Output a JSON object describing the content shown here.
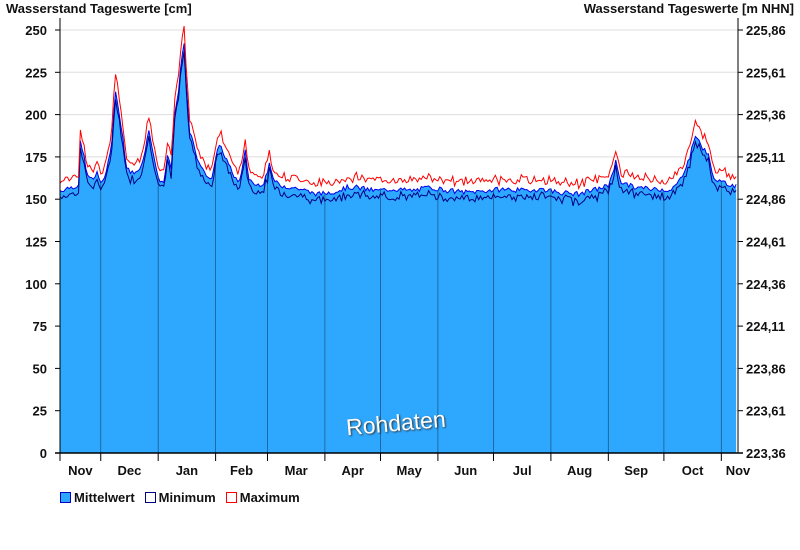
{
  "chart_data": {
    "type": "area",
    "title_left": "Wasserstand Tageswerte [cm]",
    "title_right": "Wasserstand Tageswerte [m NHN]",
    "ylim": [
      0,
      250
    ],
    "y_ticks": [
      0,
      25,
      50,
      75,
      100,
      125,
      150,
      175,
      200,
      225,
      250
    ],
    "y2_ticks": [
      "223,36",
      "223,61",
      "223,86",
      "224,11",
      "224,36",
      "224,61",
      "224,86",
      "225,11",
      "225,36",
      "225,61",
      "225,86"
    ],
    "x_range_days": [
      0,
      366
    ],
    "month_ticks": [
      {
        "label": "Nov",
        "day": 0
      },
      {
        "label": "Dec",
        "day": 22
      },
      {
        "label": "Jan",
        "day": 53
      },
      {
        "label": "Feb",
        "day": 84
      },
      {
        "label": "Mar",
        "day": 112
      },
      {
        "label": "Apr",
        "day": 143
      },
      {
        "label": "May",
        "day": 173
      },
      {
        "label": "Jun",
        "day": 204
      },
      {
        "label": "Jul",
        "day": 234
      },
      {
        "label": "Aug",
        "day": 265
      },
      {
        "label": "Sep",
        "day": 296
      },
      {
        "label": "Oct",
        "day": 326
      },
      {
        "label": "Nov",
        "day": 357
      }
    ],
    "mean_keypoints": [
      [
        0,
        155
      ],
      [
        5,
        157
      ],
      [
        10,
        158
      ],
      [
        11,
        183
      ],
      [
        13,
        175
      ],
      [
        15,
        163
      ],
      [
        18,
        162
      ],
      [
        20,
        165
      ],
      [
        22,
        160
      ],
      [
        25,
        165
      ],
      [
        28,
        185
      ],
      [
        30,
        215
      ],
      [
        32,
        200
      ],
      [
        34,
        185
      ],
      [
        36,
        168
      ],
      [
        40,
        165
      ],
      [
        44,
        170
      ],
      [
        48,
        190
      ],
      [
        50,
        180
      ],
      [
        53,
        162
      ],
      [
        56,
        160
      ],
      [
        58,
        175
      ],
      [
        60,
        168
      ],
      [
        62,
        200
      ],
      [
        64,
        215
      ],
      [
        66,
        235
      ],
      [
        67,
        242
      ],
      [
        68,
        220
      ],
      [
        70,
        190
      ],
      [
        74,
        175
      ],
      [
        78,
        165
      ],
      [
        82,
        163
      ],
      [
        86,
        183
      ],
      [
        88,
        178
      ],
      [
        92,
        168
      ],
      [
        96,
        160
      ],
      [
        98,
        165
      ],
      [
        100,
        178
      ],
      [
        102,
        162
      ],
      [
        106,
        158
      ],
      [
        110,
        160
      ],
      [
        113,
        170
      ],
      [
        116,
        160
      ],
      [
        120,
        158
      ],
      [
        125,
        157
      ],
      [
        130,
        156
      ],
      [
        135,
        154
      ],
      [
        140,
        153
      ],
      [
        145,
        154
      ],
      [
        150,
        155
      ],
      [
        155,
        157
      ],
      [
        160,
        157
      ],
      [
        165,
        156
      ],
      [
        170,
        155
      ],
      [
        180,
        156
      ],
      [
        190,
        155
      ],
      [
        200,
        157
      ],
      [
        210,
        155
      ],
      [
        220,
        154
      ],
      [
        230,
        155
      ],
      [
        240,
        156
      ],
      [
        250,
        155
      ],
      [
        260,
        156
      ],
      [
        270,
        154
      ],
      [
        280,
        153
      ],
      [
        290,
        156
      ],
      [
        296,
        158
      ],
      [
        300,
        172
      ],
      [
        303,
        160
      ],
      [
        310,
        157
      ],
      [
        320,
        156
      ],
      [
        325,
        156
      ],
      [
        330,
        155
      ],
      [
        335,
        162
      ],
      [
        340,
        175
      ],
      [
        343,
        188
      ],
      [
        346,
        182
      ],
      [
        350,
        176
      ],
      [
        352,
        165
      ],
      [
        356,
        160
      ],
      [
        365,
        158
      ]
    ],
    "min_offset": -4,
    "max_offset": 6,
    "series": [
      {
        "name": "Mittelwert",
        "color": "#2ea8ff"
      },
      {
        "name": "Minimum",
        "color": "#000080"
      },
      {
        "name": "Maximum",
        "color": "#ff0000"
      }
    ],
    "watermark": "Rohdaten",
    "legend_position": "bottom-left"
  }
}
